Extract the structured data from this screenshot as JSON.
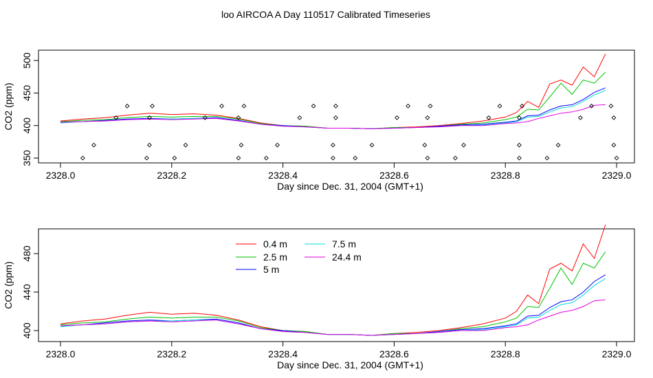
{
  "title": "loo AIRCOA A  Day 110517  Calibrated Timeseries",
  "chart_data": [
    {
      "type": "line",
      "xlabel": "Day since Dec. 31, 2004 (GMT+1)",
      "ylabel": "CO2 (ppm)",
      "xlim": [
        2328.0,
        2329.0
      ],
      "ylim": [
        345,
        515
      ],
      "x_ticks": [
        "2328.0",
        "2328.2",
        "2328.4",
        "2328.6",
        "2328.8",
        "2329.0"
      ],
      "y_ticks": [
        "350",
        "400",
        "450",
        "500"
      ],
      "series": [
        {
          "color": "#ff0000",
          "x": [
            2328.0,
            2328.04,
            2328.08,
            2328.12,
            2328.16,
            2328.2,
            2328.24,
            2328.28,
            2328.32,
            2328.36,
            2328.4,
            2328.44,
            2328.48,
            2328.52,
            2328.56,
            2328.6,
            2328.64,
            2328.68,
            2328.72,
            2328.76,
            2328.8,
            2328.82,
            2328.84,
            2328.86,
            2328.88,
            2328.9,
            2328.92,
            2328.94,
            2328.96,
            2328.98
          ],
          "y": [
            407,
            410,
            412,
            416,
            419,
            417,
            418,
            416,
            411,
            404,
            400,
            399,
            396,
            396,
            395,
            397,
            398,
            400,
            403,
            407,
            413,
            420,
            437,
            428,
            464,
            470,
            462,
            490,
            475,
            510
          ]
        },
        {
          "color": "#00c000",
          "x": [
            2328.0,
            2328.04,
            2328.08,
            2328.12,
            2328.16,
            2328.2,
            2328.24,
            2328.28,
            2328.32,
            2328.36,
            2328.4,
            2328.44,
            2328.48,
            2328.52,
            2328.56,
            2328.6,
            2328.64,
            2328.68,
            2328.72,
            2328.76,
            2328.8,
            2328.82,
            2328.84,
            2328.86,
            2328.88,
            2328.9,
            2328.92,
            2328.94,
            2328.96,
            2328.98
          ],
          "y": [
            406,
            408,
            409,
            412,
            414,
            413,
            414,
            414,
            410,
            403,
            400,
            399,
            396,
            396,
            395,
            397,
            397,
            399,
            402,
            404,
            409,
            413,
            425,
            424,
            444,
            465,
            448,
            470,
            465,
            482
          ]
        },
        {
          "color": "#0000ff",
          "x": [
            2328.0,
            2328.04,
            2328.08,
            2328.12,
            2328.16,
            2328.2,
            2328.24,
            2328.28,
            2328.32,
            2328.36,
            2328.4,
            2328.44,
            2328.48,
            2328.52,
            2328.56,
            2328.6,
            2328.64,
            2328.68,
            2328.72,
            2328.76,
            2328.8,
            2328.82,
            2328.84,
            2328.86,
            2328.88,
            2328.9,
            2328.92,
            2328.94,
            2328.96,
            2328.98
          ],
          "y": [
            405,
            406,
            408,
            410,
            411,
            410,
            411,
            412,
            408,
            402,
            400,
            398,
            396,
            396,
            395,
            396,
            397,
            399,
            401,
            402,
            405,
            407,
            415,
            416,
            424,
            430,
            432,
            440,
            451,
            458
          ]
        },
        {
          "color": "#00d8d8",
          "x": [
            2328.0,
            2328.04,
            2328.08,
            2328.12,
            2328.16,
            2328.2,
            2328.24,
            2328.28,
            2328.32,
            2328.36,
            2328.4,
            2328.44,
            2328.48,
            2328.52,
            2328.56,
            2328.6,
            2328.64,
            2328.68,
            2328.72,
            2328.76,
            2328.8,
            2328.82,
            2328.84,
            2328.86,
            2328.88,
            2328.9,
            2328.92,
            2328.94,
            2328.96,
            2328.98
          ],
          "y": [
            404,
            406,
            407,
            409,
            410,
            410,
            411,
            411,
            407,
            402,
            399,
            398,
            396,
            396,
            395,
            396,
            397,
            398,
            400,
            401,
            404,
            406,
            413,
            414,
            421,
            427,
            429,
            437,
            447,
            454
          ]
        },
        {
          "color": "#e000e0",
          "x": [
            2328.0,
            2328.04,
            2328.08,
            2328.12,
            2328.16,
            2328.2,
            2328.24,
            2328.28,
            2328.32,
            2328.36,
            2328.4,
            2328.44,
            2328.48,
            2328.52,
            2328.56,
            2328.6,
            2328.64,
            2328.68,
            2328.72,
            2328.76,
            2328.8,
            2328.82,
            2328.84,
            2328.86,
            2328.88,
            2328.9,
            2328.92,
            2328.94,
            2328.96,
            2328.98
          ],
          "y": [
            405,
            406,
            407,
            409,
            410,
            409,
            410,
            411,
            407,
            402,
            399,
            398,
            396,
            396,
            395,
            396,
            397,
            398,
            400,
            400,
            403,
            404,
            406,
            411,
            415,
            419,
            421,
            425,
            431,
            432
          ]
        }
      ],
      "points": {
        "x": [
          2328.04,
          2328.06,
          2328.1,
          2328.12,
          2328.155,
          2328.16,
          2328.16,
          2328.165,
          2328.205,
          2328.225,
          2328.26,
          2328.29,
          2328.32,
          2328.325,
          2328.33,
          2328.32,
          2328.37,
          2328.39,
          2328.43,
          2328.455,
          2328.49,
          2328.49,
          2328.495,
          2328.495,
          2328.53,
          2328.56,
          2328.605,
          2328.625,
          2328.655,
          2328.66,
          2328.66,
          2328.665,
          2328.71,
          2328.725,
          2328.77,
          2328.79,
          2328.825,
          2328.825,
          2328.825,
          2328.83,
          2328.875,
          2328.895,
          2328.935,
          2328.955,
          2328.99,
          2328.995,
          2328.995,
          2329.0
        ],
        "y": [
          350,
          370,
          412,
          430,
          350,
          370,
          412,
          430,
          350,
          370,
          412,
          430,
          350,
          370,
          430,
          412,
          350,
          370,
          412,
          430,
          350,
          370,
          412,
          430,
          350,
          370,
          412,
          430,
          370,
          350,
          412,
          430,
          350,
          370,
          412,
          430,
          350,
          370,
          412,
          430,
          350,
          370,
          412,
          430,
          430,
          412,
          370,
          350
        ]
      }
    },
    {
      "type": "line",
      "xlabel": "Day since Dec. 31, 2004 (GMT+1)",
      "ylabel": "CO2 (ppm)",
      "xlim": [
        2328.0,
        2329.0
      ],
      "ylim": [
        390,
        520
      ],
      "x_ticks": [
        "2328.0",
        "2328.2",
        "2328.4",
        "2328.6",
        "2328.8",
        "2329.0"
      ],
      "y_ticks": [
        "400",
        "440",
        "480"
      ],
      "legend": [
        {
          "label": "0.4 m",
          "color": "#ff0000"
        },
        {
          "label": "2.5 m",
          "color": "#00c000"
        },
        {
          "label": "5 m",
          "color": "#0000ff"
        },
        {
          "label": "7.5 m",
          "color": "#00d8d8"
        },
        {
          "label": "24.4 m",
          "color": "#e000e0"
        }
      ]
    }
  ]
}
